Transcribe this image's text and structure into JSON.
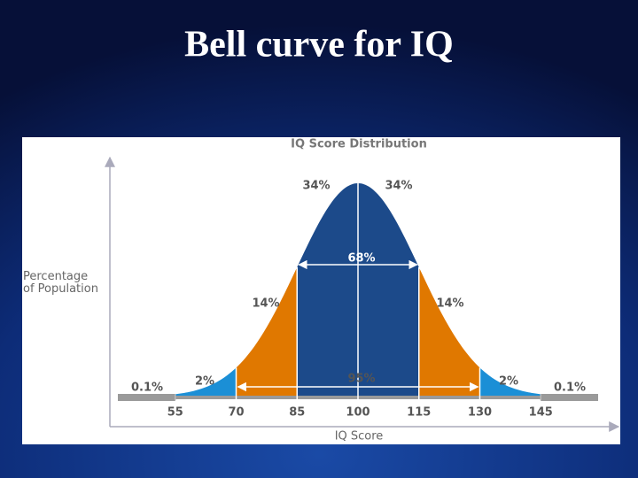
{
  "slide_title": "Bell curve for IQ",
  "chart_data": {
    "type": "bell",
    "title": "IQ Score Distribution",
    "y_label": "Percentage of Population",
    "x_label": "IQ Score",
    "xlim": [
      40,
      160
    ],
    "xticks": [
      55,
      70,
      85,
      100,
      115,
      130,
      145
    ],
    "segments": {
      "values": [
        0.1,
        2,
        14,
        34,
        34,
        14,
        2,
        0.1
      ],
      "value_labels": [
        "0.1%",
        "2%",
        "14%",
        "34%",
        "34%",
        "14%",
        "2%",
        "0.1%"
      ],
      "colors": [
        "#9a9a9a",
        "#1b8fd6",
        "#e07800",
        "#1c4a8a",
        "#1c4a8a",
        "#e07800",
        "#1b8fd6",
        "#9a9a9a"
      ]
    },
    "spans": {
      "values": [
        68,
        95
      ],
      "value_labels": [
        "68%",
        "95%"
      ]
    }
  }
}
